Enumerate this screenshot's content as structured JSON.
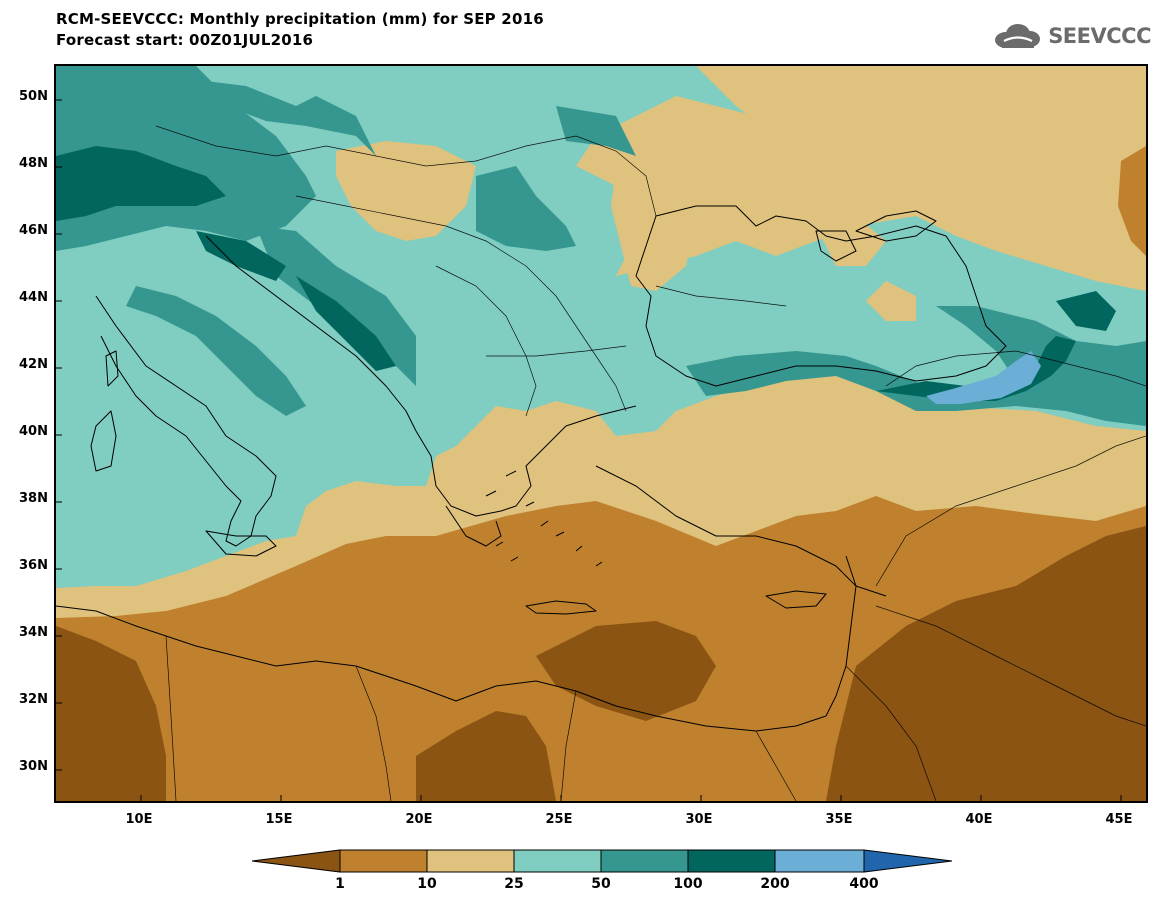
{
  "header": {
    "title_line1": "RCM-SEEVCCC: Monthly precipitation (mm) for SEP 2016",
    "title_line2": "Forecast start: 00Z01JUL2016",
    "logo_text": "SEEVCCC"
  },
  "map": {
    "lat_labels": [
      "50N",
      "48N",
      "46N",
      "44N",
      "42N",
      "40N",
      "38N",
      "36N",
      "34N",
      "32N",
      "30N"
    ],
    "lon_labels": [
      "10E",
      "15E",
      "20E",
      "25E",
      "30E",
      "35E",
      "40E",
      "45E"
    ]
  },
  "colorbar": {
    "labels": [
      "1",
      "10",
      "25",
      "50",
      "100",
      "200",
      "400"
    ],
    "colors": {
      "lt1": "#8c5412",
      "c1_10": "#bf812d",
      "c10_25": "#dfc27d",
      "c25_50": "#80cdc1",
      "c50_100": "#35978f",
      "c100_200": "#01665e",
      "c200_400": "#6baed6",
      "gt400": "#2166ac"
    }
  }
}
